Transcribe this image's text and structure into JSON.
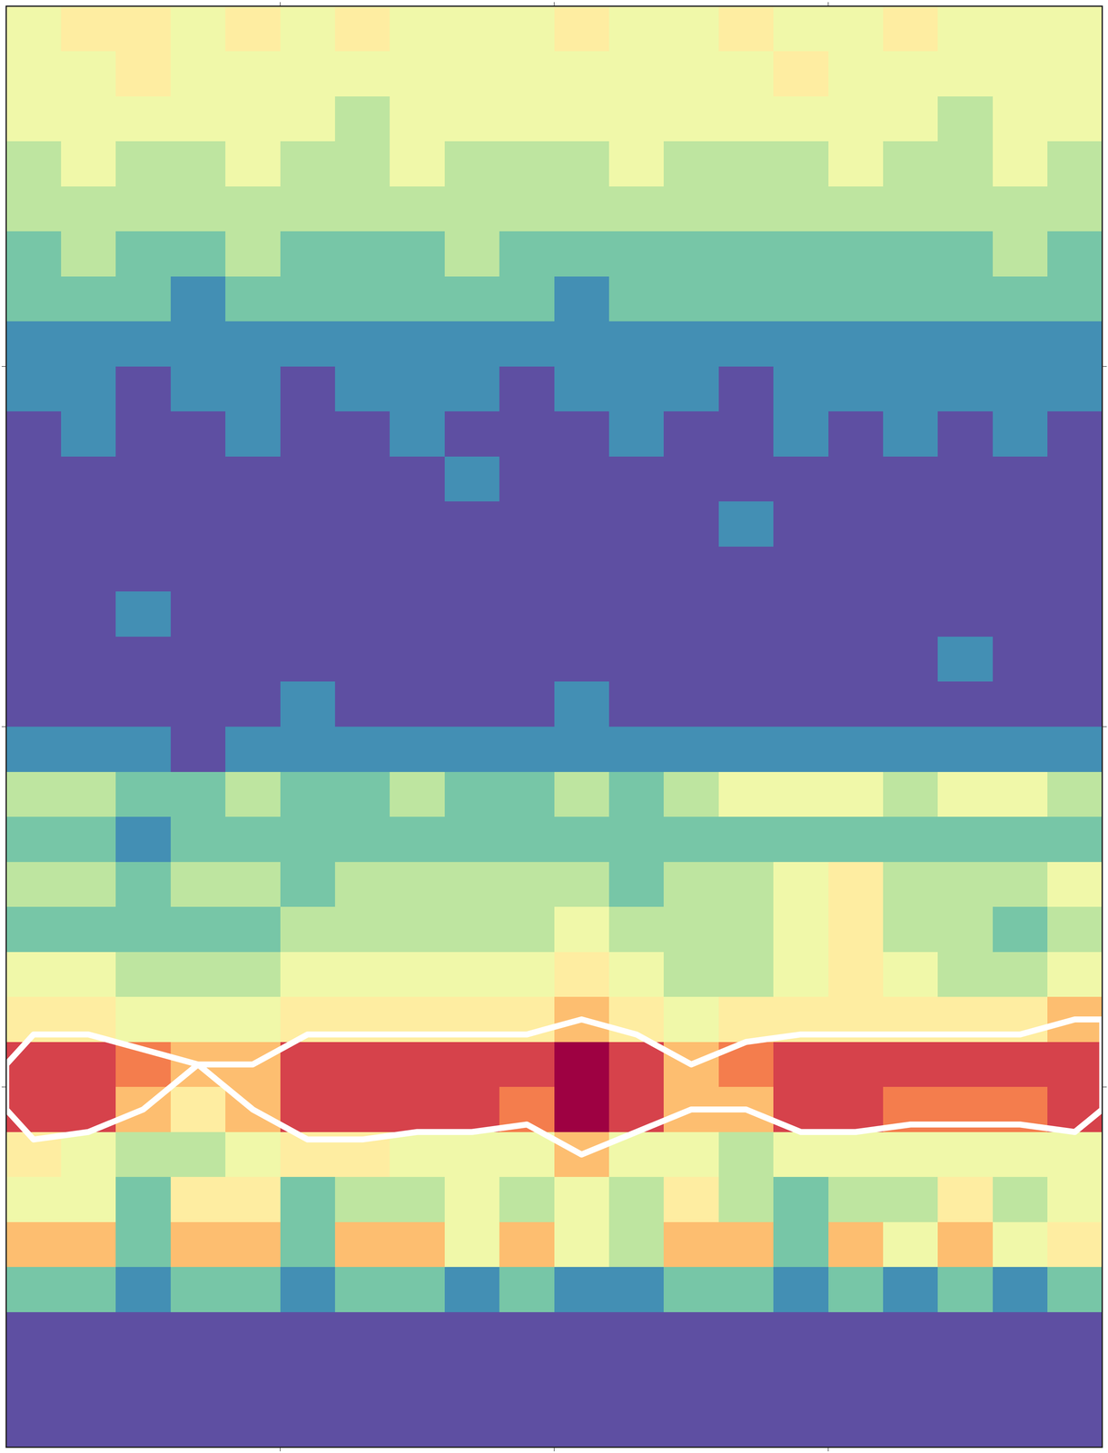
{
  "chart_data": {
    "type": "heatmap",
    "xlim": [
      0,
      4
    ],
    "ylim": [
      0,
      4
    ],
    "xticks": [
      1,
      2,
      3
    ],
    "yticks": [
      1,
      2,
      3
    ],
    "tick_labels": false,
    "color_range": [
      0,
      9
    ],
    "contour_thresholds": [
      6
    ],
    "cells": [
      [
        4,
        5,
        5,
        4,
        5,
        4,
        5,
        4,
        4,
        4,
        5,
        4,
        4,
        5,
        4,
        4,
        5,
        4,
        4,
        4
      ],
      [
        4,
        4,
        5,
        4,
        4,
        4,
        4,
        4,
        4,
        4,
        4,
        4,
        4,
        4,
        5,
        4,
        4,
        4,
        4,
        4
      ],
      [
        4,
        4,
        4,
        4,
        4,
        4,
        3,
        4,
        4,
        4,
        4,
        4,
        4,
        4,
        4,
        4,
        4,
        3,
        4,
        4
      ],
      [
        3,
        4,
        3,
        3,
        4,
        3,
        3,
        4,
        3,
        3,
        3,
        4,
        3,
        3,
        3,
        4,
        3,
        3,
        4,
        3
      ],
      [
        3,
        3,
        3,
        3,
        3,
        3,
        3,
        3,
        3,
        3,
        3,
        3,
        3,
        3,
        3,
        3,
        3,
        3,
        3,
        3
      ],
      [
        2,
        3,
        2,
        2,
        3,
        2,
        2,
        2,
        3,
        2,
        2,
        2,
        2,
        2,
        2,
        2,
        2,
        2,
        3,
        2
      ],
      [
        2,
        2,
        2,
        1,
        2,
        2,
        2,
        2,
        2,
        2,
        1,
        2,
        2,
        2,
        2,
        2,
        2,
        2,
        2,
        2
      ],
      [
        1,
        1,
        1,
        1,
        1,
        1,
        1,
        1,
        1,
        1,
        1,
        1,
        1,
        1,
        1,
        1,
        1,
        1,
        1,
        1
      ],
      [
        1,
        1,
        0,
        1,
        1,
        0,
        1,
        1,
        1,
        0,
        1,
        1,
        1,
        0,
        1,
        1,
        1,
        1,
        1,
        1
      ],
      [
        0,
        1,
        0,
        0,
        1,
        0,
        0,
        1,
        0,
        0,
        0,
        1,
        0,
        0,
        1,
        0,
        1,
        0,
        1,
        0
      ],
      [
        0,
        0,
        0,
        0,
        0,
        0,
        0,
        0,
        1,
        0,
        0,
        0,
        0,
        0,
        0,
        0,
        0,
        0,
        0,
        0
      ],
      [
        0,
        0,
        0,
        0,
        0,
        0,
        0,
        0,
        0,
        0,
        0,
        0,
        0,
        1,
        0,
        0,
        0,
        0,
        0,
        0
      ],
      [
        0,
        0,
        0,
        0,
        0,
        0,
        0,
        0,
        0,
        0,
        0,
        0,
        0,
        0,
        0,
        0,
        0,
        0,
        0,
        0
      ],
      [
        0,
        0,
        1,
        0,
        0,
        0,
        0,
        0,
        0,
        0,
        0,
        0,
        0,
        0,
        0,
        0,
        0,
        0,
        0,
        0
      ],
      [
        0,
        0,
        0,
        0,
        0,
        0,
        0,
        0,
        0,
        0,
        0,
        0,
        0,
        0,
        0,
        0,
        0,
        1,
        0,
        0
      ],
      [
        0,
        0,
        0,
        0,
        0,
        1,
        0,
        0,
        0,
        0,
        1,
        0,
        0,
        0,
        0,
        0,
        0,
        0,
        0,
        0
      ],
      [
        1,
        1,
        1,
        0,
        1,
        1,
        1,
        1,
        1,
        1,
        1,
        1,
        1,
        1,
        1,
        1,
        1,
        1,
        1,
        1
      ],
      [
        3,
        3,
        2,
        2,
        3,
        2,
        2,
        3,
        2,
        2,
        3,
        2,
        3,
        4,
        4,
        4,
        3,
        4,
        4,
        3
      ],
      [
        2,
        2,
        1,
        2,
        2,
        2,
        2,
        2,
        2,
        2,
        2,
        2,
        2,
        2,
        2,
        2,
        2,
        2,
        2,
        2
      ],
      [
        3,
        3,
        2,
        3,
        3,
        2,
        3,
        3,
        3,
        3,
        3,
        2,
        3,
        3,
        4,
        5,
        3,
        3,
        3,
        4
      ],
      [
        2,
        2,
        2,
        2,
        2,
        3,
        3,
        3,
        3,
        3,
        4,
        3,
        3,
        3,
        4,
        5,
        3,
        3,
        2,
        3
      ],
      [
        4,
        4,
        3,
        3,
        3,
        4,
        4,
        4,
        4,
        4,
        5,
        4,
        3,
        3,
        4,
        5,
        4,
        3,
        3,
        4
      ],
      [
        5,
        5,
        4,
        4,
        4,
        5,
        5,
        5,
        5,
        5,
        6,
        5,
        4,
        5,
        5,
        5,
        5,
        5,
        5,
        6
      ],
      [
        8,
        8,
        7,
        6,
        6,
        8,
        8,
        8,
        8,
        8,
        9,
        8,
        6,
        7,
        8,
        8,
        8,
        8,
        8,
        8
      ],
      [
        8,
        8,
        6,
        5,
        6,
        8,
        8,
        8,
        8,
        7,
        9,
        8,
        6,
        6,
        8,
        8,
        7,
        7,
        7,
        8
      ],
      [
        5,
        4,
        3,
        3,
        4,
        5,
        5,
        4,
        4,
        4,
        6,
        4,
        4,
        3,
        4,
        4,
        4,
        4,
        4,
        4
      ],
      [
        4,
        4,
        2,
        5,
        5,
        2,
        3,
        3,
        4,
        3,
        4,
        3,
        5,
        3,
        2,
        3,
        3,
        5,
        3,
        4
      ],
      [
        6,
        6,
        2,
        6,
        6,
        2,
        6,
        6,
        4,
        6,
        4,
        3,
        6,
        6,
        2,
        6,
        4,
        6,
        4,
        5
      ],
      [
        2,
        2,
        1,
        2,
        2,
        1,
        2,
        2,
        1,
        2,
        1,
        1,
        2,
        2,
        1,
        2,
        1,
        2,
        1,
        2
      ],
      [
        0,
        0,
        0,
        0,
        0,
        0,
        0,
        0,
        0,
        0,
        0,
        0,
        0,
        0,
        0,
        0,
        0,
        0,
        0,
        0
      ],
      [
        0,
        0,
        0,
        0,
        0,
        0,
        0,
        0,
        0,
        0,
        0,
        0,
        0,
        0,
        0,
        0,
        0,
        0,
        0,
        0
      ],
      [
        0,
        0,
        0,
        0,
        0,
        0,
        0,
        0,
        0,
        0,
        0,
        0,
        0,
        0,
        0,
        0,
        0,
        0,
        0,
        0
      ]
    ]
  }
}
